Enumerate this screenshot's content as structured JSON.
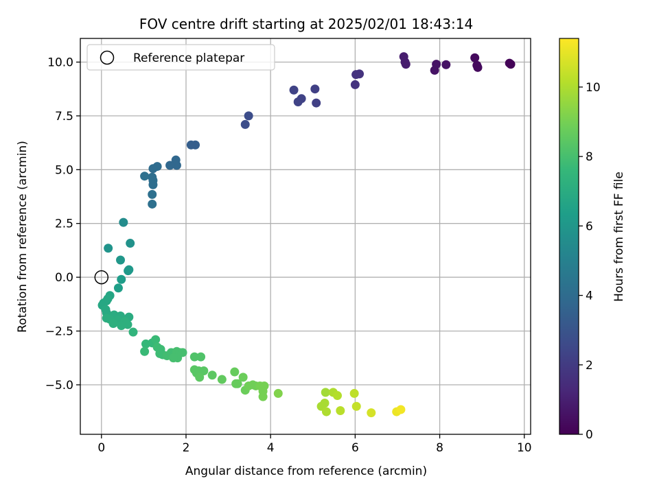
{
  "chart_data": {
    "type": "scatter",
    "title": "FOV centre drift starting at 2025/02/01 18:43:14",
    "xlabel": "Angular distance from reference (arcmin)",
    "ylabel": "Rotation from reference (arcmin)",
    "xlim": [
      -0.5,
      10.15
    ],
    "ylim": [
      -7.3,
      11.1
    ],
    "xticks": [
      0,
      2,
      4,
      6,
      8,
      10
    ],
    "xtick_labels": [
      "0",
      "2",
      "4",
      "6",
      "8",
      "10"
    ],
    "yticks": [
      -5.0,
      -2.5,
      0.0,
      2.5,
      5.0,
      7.5,
      10.0
    ],
    "ytick_labels": [
      "−5.0",
      "−2.5",
      "0.0",
      "2.5",
      "5.0",
      "7.5",
      "10.0"
    ],
    "grid": true,
    "legend": {
      "position": "upper-left",
      "entries": [
        "Reference platepar"
      ]
    },
    "reference_point": {
      "x": 0,
      "y": 0
    },
    "colorbar": {
      "label": "Hours from first FF file",
      "range": [
        0,
        11.4
      ],
      "colormap": "viridis",
      "ticks": [
        0,
        2,
        4,
        6,
        8,
        10
      ],
      "tick_labels": [
        "0",
        "2",
        "4",
        "6",
        "8",
        "10"
      ]
    },
    "colors": {
      "viridis": [
        "#440154",
        "#482878",
        "#3e4989",
        "#31688e",
        "#26828e",
        "#1f9e89",
        "#35b779",
        "#6ece58",
        "#b5de2b",
        "#fde725"
      ]
    },
    "series": [
      {
        "points": [
          [
            9.68,
            9.9,
            0.1
          ],
          [
            9.65,
            9.95,
            0.1
          ],
          [
            8.9,
            9.75,
            0.3
          ],
          [
            8.88,
            9.85,
            0.3
          ],
          [
            8.83,
            10.2,
            0.3
          ],
          [
            8.15,
            9.88,
            0.6
          ],
          [
            7.92,
            9.9,
            0.6
          ],
          [
            7.88,
            9.62,
            0.6
          ],
          [
            7.2,
            9.9,
            0.9
          ],
          [
            7.18,
            10.0,
            0.9
          ],
          [
            7.15,
            10.25,
            0.9
          ],
          [
            6.1,
            9.45,
            1.7
          ],
          [
            6.02,
            9.42,
            1.7
          ],
          [
            6.0,
            8.95,
            1.7
          ],
          [
            5.05,
            8.75,
            2.2
          ],
          [
            5.08,
            8.1,
            2.2
          ],
          [
            4.73,
            8.3,
            2.3
          ],
          [
            4.65,
            8.15,
            2.3
          ],
          [
            4.55,
            8.7,
            2.3
          ],
          [
            3.48,
            7.5,
            2.7
          ],
          [
            3.4,
            7.1,
            2.7
          ],
          [
            2.22,
            6.15,
            3.4
          ],
          [
            2.12,
            6.15,
            3.4
          ],
          [
            1.76,
            5.45,
            3.8
          ],
          [
            1.78,
            5.2,
            3.8
          ],
          [
            1.62,
            5.2,
            3.8
          ],
          [
            1.32,
            5.15,
            4.0
          ],
          [
            1.22,
            5.05,
            4.0
          ],
          [
            1.2,
            4.65,
            4.1
          ],
          [
            1.22,
            4.5,
            4.1
          ],
          [
            1.22,
            4.3,
            4.1
          ],
          [
            1.2,
            3.85,
            4.2
          ],
          [
            1.2,
            3.4,
            4.2
          ],
          [
            1.02,
            4.7,
            4.2
          ],
          [
            0.52,
            2.55,
            5.5
          ],
          [
            0.68,
            1.58,
            5.8
          ],
          [
            0.16,
            1.35,
            5.9
          ],
          [
            0.45,
            0.8,
            6.0
          ],
          [
            0.65,
            0.35,
            6.1
          ],
          [
            0.63,
            0.3,
            6.1
          ],
          [
            0.47,
            -0.1,
            6.3
          ],
          [
            0.4,
            -0.5,
            6.4
          ],
          [
            0.2,
            -0.85,
            6.7
          ],
          [
            0.15,
            -1.0,
            6.8
          ],
          [
            0.12,
            -1.1,
            6.8
          ],
          [
            0.05,
            -1.2,
            6.8
          ],
          [
            0.02,
            -1.3,
            6.8
          ],
          [
            0.1,
            -1.5,
            6.9
          ],
          [
            0.12,
            -1.65,
            6.9
          ],
          [
            0.3,
            -1.75,
            7.0
          ],
          [
            0.45,
            -1.8,
            7.0
          ],
          [
            0.65,
            -1.85,
            7.0
          ],
          [
            0.12,
            -1.9,
            7.1
          ],
          [
            0.2,
            -1.95,
            7.1
          ],
          [
            0.38,
            -2.0,
            7.1
          ],
          [
            0.55,
            -2.05,
            7.2
          ],
          [
            0.62,
            -2.2,
            7.2
          ],
          [
            0.28,
            -2.15,
            7.2
          ],
          [
            0.47,
            -2.25,
            7.2
          ],
          [
            0.75,
            -2.55,
            7.4
          ],
          [
            1.05,
            -3.1,
            7.6
          ],
          [
            1.2,
            -3.05,
            7.6
          ],
          [
            1.02,
            -3.45,
            7.7
          ],
          [
            1.28,
            -2.9,
            7.7
          ],
          [
            1.32,
            -3.25,
            7.8
          ],
          [
            1.4,
            -3.35,
            7.8
          ],
          [
            1.38,
            -3.55,
            7.8
          ],
          [
            1.45,
            -3.6,
            7.8
          ],
          [
            1.55,
            -3.65,
            7.9
          ],
          [
            1.65,
            -3.5,
            7.9
          ],
          [
            1.72,
            -3.6,
            7.9
          ],
          [
            1.78,
            -3.45,
            8.0
          ],
          [
            1.85,
            -3.5,
            8.0
          ],
          [
            1.8,
            -3.75,
            8.0
          ],
          [
            1.92,
            -3.5,
            8.0
          ],
          [
            1.7,
            -3.75,
            8.0
          ],
          [
            2.2,
            -3.7,
            8.2
          ],
          [
            2.35,
            -3.7,
            8.2
          ],
          [
            2.2,
            -4.3,
            8.4
          ],
          [
            2.25,
            -4.45,
            8.4
          ],
          [
            2.3,
            -4.35,
            8.4
          ],
          [
            2.42,
            -4.35,
            8.4
          ],
          [
            2.32,
            -4.65,
            8.5
          ],
          [
            2.62,
            -4.55,
            8.5
          ],
          [
            2.85,
            -4.75,
            8.6
          ],
          [
            3.15,
            -4.4,
            8.7
          ],
          [
            3.18,
            -4.95,
            8.7
          ],
          [
            3.22,
            -4.95,
            8.7
          ],
          [
            3.35,
            -4.65,
            8.8
          ],
          [
            3.4,
            -5.25,
            8.8
          ],
          [
            3.48,
            -5.05,
            8.9
          ],
          [
            3.58,
            -5.0,
            8.9
          ],
          [
            3.65,
            -5.05,
            8.9
          ],
          [
            3.75,
            -5.05,
            9.0
          ],
          [
            3.85,
            -5.05,
            9.0
          ],
          [
            3.82,
            -5.3,
            9.0
          ],
          [
            3.82,
            -5.55,
            9.0
          ],
          [
            4.18,
            -5.4,
            9.2
          ],
          [
            5.3,
            -5.35,
            9.8
          ],
          [
            5.28,
            -5.85,
            9.9
          ],
          [
            5.2,
            -6.0,
            9.9
          ],
          [
            5.32,
            -6.25,
            10.0
          ],
          [
            5.48,
            -5.35,
            10.0
          ],
          [
            5.58,
            -5.5,
            10.1
          ],
          [
            5.65,
            -6.2,
            10.2
          ],
          [
            5.98,
            -5.4,
            10.3
          ],
          [
            6.03,
            -6.0,
            10.4
          ],
          [
            6.38,
            -6.3,
            10.7
          ],
          [
            6.98,
            -6.25,
            11.1
          ],
          [
            7.08,
            -6.15,
            11.2
          ]
        ]
      }
    ]
  }
}
